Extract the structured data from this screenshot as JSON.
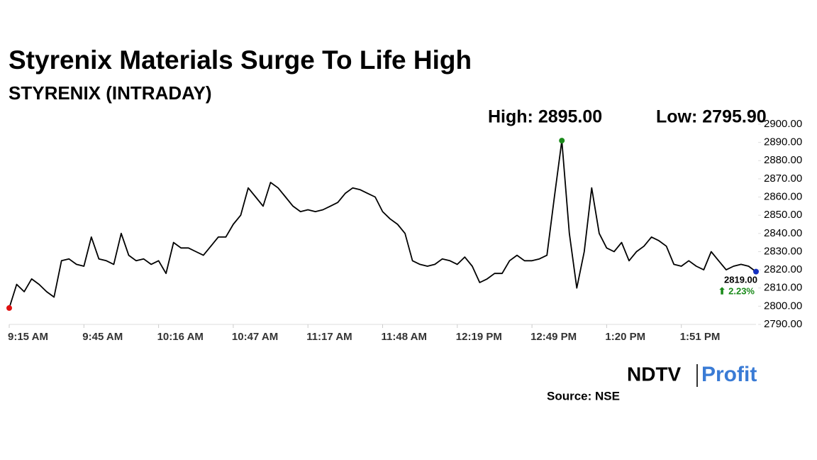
{
  "chart_data": {
    "type": "line",
    "title": "Styrenix Materials Surge To Life High",
    "subtitle": "STYRENIX (INTRADAY)",
    "high_label": "High: 2895.00",
    "low_label": "Low: 2795.90",
    "last_price_label": "2819.00",
    "change_label": "⬆ 2.23%",
    "source": "Source: NSE",
    "logo": [
      "NDTV",
      "Profit"
    ],
    "categories": [
      "9:15 AM",
      null,
      null,
      null,
      null,
      null,
      null,
      null,
      null,
      null,
      "9:45 AM",
      null,
      null,
      null,
      null,
      null,
      null,
      null,
      null,
      null,
      "10:16 AM",
      null,
      null,
      null,
      null,
      null,
      null,
      null,
      null,
      null,
      "10:47 AM",
      null,
      null,
      null,
      null,
      null,
      null,
      null,
      null,
      null,
      "11:17 AM",
      null,
      null,
      null,
      null,
      null,
      null,
      null,
      null,
      null,
      "11:48 AM",
      null,
      null,
      null,
      null,
      null,
      null,
      null,
      null,
      null,
      "12:19 PM",
      null,
      null,
      null,
      null,
      null,
      null,
      null,
      null,
      null,
      "12:49 PM",
      null,
      null,
      null,
      null,
      null,
      null,
      null,
      null,
      null,
      "1:20 PM",
      null,
      null,
      null,
      null,
      null,
      null,
      null,
      null,
      null,
      "1:51 PM",
      null,
      null,
      null,
      null,
      null,
      null,
      null,
      null,
      null,
      null
    ],
    "series": [
      {
        "color": "#000000",
        "values": [
          2799,
          2812,
          2808,
          2815,
          2812,
          2808,
          2805,
          2825,
          2826,
          2823,
          2822,
          2838,
          2826,
          2825,
          2823,
          2840,
          2828,
          2825,
          2826,
          2823,
          2825,
          2818,
          2835,
          2832,
          2832,
          2830,
          2828,
          2833,
          2838,
          2838,
          2845,
          2850,
          2865,
          2860,
          2855,
          2868,
          2865,
          2860,
          2855,
          2852,
          2853,
          2852,
          2853,
          2855,
          2857,
          2862,
          2865,
          2864,
          2862,
          2860,
          2852,
          2848,
          2845,
          2840,
          2825,
          2823,
          2822,
          2823,
          2826,
          2825,
          2823,
          2827,
          2822,
          2813,
          2815,
          2818,
          2818,
          2825,
          2828,
          2825,
          2825,
          2826,
          2828,
          2860,
          2891,
          2840,
          2810,
          2830,
          2865,
          2840,
          2832,
          2830,
          2835,
          2825,
          2830,
          2833,
          2838,
          2836,
          2833,
          2823,
          2822,
          2825,
          2822,
          2820,
          2830,
          2825,
          2820,
          2822,
          2823,
          2822,
          2819
        ]
      }
    ],
    "start_color": "#e01010",
    "high_color": "#1a8a1a",
    "end_color": "#1530c0",
    "change_color": "#1a8a1a",
    "ylim": [
      2790,
      2900
    ],
    "yticks": [
      {
        "value": 2790,
        "label": "2790.00"
      },
      {
        "value": 2800,
        "label": "2800.00"
      },
      {
        "value": 2810,
        "label": "2810.00"
      },
      {
        "value": 2820,
        "label": "2820.00"
      },
      {
        "value": 2830,
        "label": "2830.00"
      },
      {
        "value": 2840,
        "label": "2840.00"
      },
      {
        "value": 2850,
        "label": "2850.00"
      },
      {
        "value": 2860,
        "label": "2860.00"
      },
      {
        "value": 2870,
        "label": "2870.00"
      },
      {
        "value": 2880,
        "label": "2880.00"
      },
      {
        "value": 2890,
        "label": "2890.00"
      },
      {
        "value": 2900,
        "label": "2900.00"
      }
    ]
  }
}
